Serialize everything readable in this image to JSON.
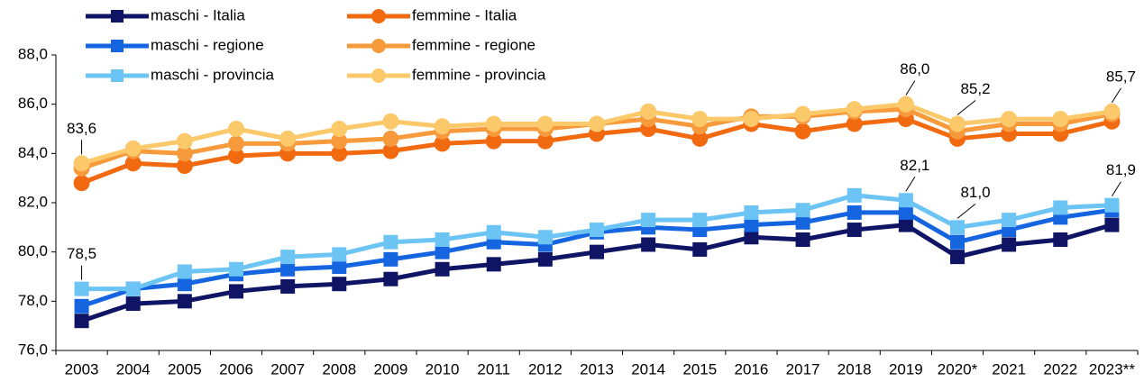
{
  "chart_data": {
    "type": "line",
    "categories": [
      "2003",
      "2004",
      "2005",
      "2006",
      "2007",
      "2008",
      "2009",
      "2010",
      "2011",
      "2012",
      "2013",
      "2014",
      "2015",
      "2016",
      "2017",
      "2018",
      "2019",
      "2020*",
      "2021",
      "2022",
      "2023**"
    ],
    "series": [
      {
        "name": "maschi - Italia",
        "color": "#0f1464",
        "marker": "square",
        "values": [
          77.2,
          77.9,
          78.0,
          78.4,
          78.6,
          78.7,
          78.9,
          79.3,
          79.5,
          79.7,
          80.0,
          80.3,
          80.1,
          80.6,
          80.5,
          80.9,
          81.1,
          79.8,
          80.3,
          80.5,
          81.1
        ]
      },
      {
        "name": "maschi - regione",
        "color": "#1565e0",
        "marker": "square",
        "values": [
          77.8,
          78.5,
          78.7,
          79.1,
          79.3,
          79.4,
          79.7,
          80.0,
          80.4,
          80.3,
          80.8,
          81.0,
          80.9,
          81.1,
          81.2,
          81.6,
          81.6,
          80.4,
          80.9,
          81.4,
          81.7
        ]
      },
      {
        "name": "maschi - provincia",
        "color": "#6cc4f5",
        "marker": "square",
        "values": [
          78.5,
          78.5,
          79.2,
          79.3,
          79.8,
          79.9,
          80.4,
          80.5,
          80.8,
          80.6,
          80.9,
          81.3,
          81.3,
          81.6,
          81.7,
          82.3,
          82.1,
          81.0,
          81.3,
          81.8,
          81.9
        ],
        "value_labels": [
          "78,5",
          null,
          null,
          null,
          null,
          null,
          null,
          null,
          null,
          null,
          null,
          null,
          null,
          null,
          null,
          null,
          "82,1",
          "81,0",
          null,
          null,
          "81,9"
        ]
      },
      {
        "name": "femmine - Italia",
        "color": "#f26a10",
        "marker": "circle",
        "values": [
          82.8,
          83.6,
          83.5,
          83.9,
          84.0,
          84.0,
          84.1,
          84.4,
          84.5,
          84.5,
          84.8,
          85.0,
          84.6,
          85.2,
          84.9,
          85.2,
          85.4,
          84.6,
          84.8,
          84.8,
          85.3
        ]
      },
      {
        "name": "femmine - regione",
        "color": "#f79a3c",
        "marker": "circle",
        "values": [
          83.4,
          84.1,
          84.0,
          84.4,
          84.4,
          84.5,
          84.6,
          84.9,
          85.0,
          85.0,
          85.2,
          85.4,
          85.1,
          85.5,
          85.5,
          85.7,
          85.8,
          84.9,
          85.2,
          85.2,
          85.6
        ]
      },
      {
        "name": "femmine - provincia",
        "color": "#fcc96a",
        "marker": "circle",
        "values": [
          83.6,
          84.2,
          84.5,
          85.0,
          84.6,
          85.0,
          85.3,
          85.1,
          85.2,
          85.2,
          85.2,
          85.7,
          85.4,
          85.4,
          85.6,
          85.8,
          86.0,
          85.2,
          85.4,
          85.4,
          85.7
        ],
        "value_labels": [
          "83,6",
          null,
          null,
          null,
          null,
          null,
          null,
          null,
          null,
          null,
          null,
          null,
          null,
          null,
          null,
          null,
          "86,0",
          "85,2",
          null,
          null,
          "85,7"
        ]
      }
    ],
    "ylim": [
      76,
      88
    ],
    "yticks": [
      {
        "value": 76,
        "label": "76,0"
      },
      {
        "value": 78,
        "label": "78,0"
      },
      {
        "value": 80,
        "label": "80,0"
      },
      {
        "value": 82,
        "label": "82,0"
      },
      {
        "value": 84,
        "label": "84,0"
      },
      {
        "value": 86,
        "label": "86,0"
      },
      {
        "value": 88,
        "label": "88,0"
      }
    ],
    "grid": false,
    "legend": "top-left"
  }
}
